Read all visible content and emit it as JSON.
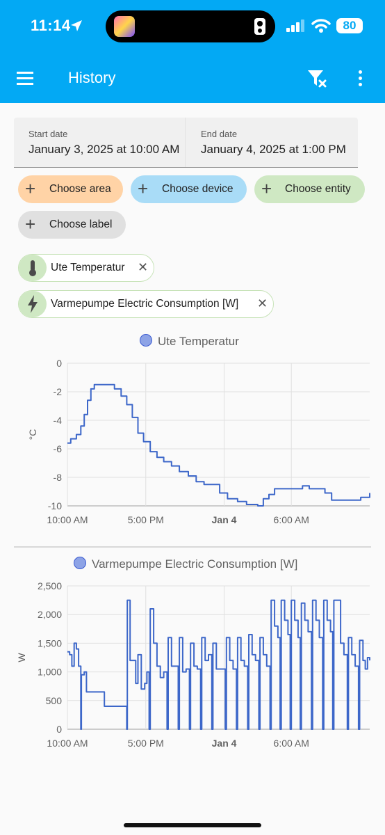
{
  "status": {
    "time": "11:14",
    "battery": "80"
  },
  "appbar": {
    "title": "History"
  },
  "dates": {
    "start_label": "Start date",
    "start_value": "January 3, 2025 at 10:00 AM",
    "end_label": "End date",
    "end_value": "January 4, 2025 at 1:00 PM"
  },
  "chips": {
    "area": "Choose area",
    "device": "Choose device",
    "entity": "Choose entity",
    "label": "Choose label"
  },
  "entities": [
    {
      "name": "Ute Temperatur",
      "icon": "thermometer-icon"
    },
    {
      "name": "Varmepumpe Electric Consumption [W]",
      "icon": "lightning-icon"
    }
  ],
  "colors": {
    "accent": "#03a9f4",
    "line": "#3d67c9",
    "area_chip": "#ffd3a6",
    "device_chip": "#a9dcf7",
    "entity_chip": "#cfe8c3",
    "label_chip": "#e0e0e0"
  },
  "chart_data": [
    {
      "type": "line",
      "title": "Ute Temperatur",
      "ylabel": "°C",
      "x_ticks": [
        "10:00 AM",
        "5:00 PM",
        "Jan 4",
        "6:00 AM"
      ],
      "y_ticks": [
        "0",
        "-2",
        "-4",
        "-6",
        "-8",
        "-10"
      ],
      "xlim_hours": [
        0,
        27
      ],
      "ylim": [
        -10,
        0
      ],
      "series": [
        {
          "name": "Ute Temperatur",
          "points": [
            [
              0,
              -5.6
            ],
            [
              0.3,
              -5.3
            ],
            [
              0.8,
              -5.0
            ],
            [
              1.2,
              -4.4
            ],
            [
              1.5,
              -3.6
            ],
            [
              1.8,
              -2.6
            ],
            [
              2.1,
              -1.8
            ],
            [
              2.4,
              -1.5
            ],
            [
              3.5,
              -1.5
            ],
            [
              4.2,
              -1.8
            ],
            [
              4.8,
              -2.3
            ],
            [
              5.3,
              -2.9
            ],
            [
              5.8,
              -3.8
            ],
            [
              6.3,
              -4.9
            ],
            [
              6.8,
              -5.5
            ],
            [
              7.4,
              -6.2
            ],
            [
              8,
              -6.6
            ],
            [
              8.6,
              -6.9
            ],
            [
              9.3,
              -7.2
            ],
            [
              10,
              -7.6
            ],
            [
              10.8,
              -7.9
            ],
            [
              11.5,
              -8.3
            ],
            [
              12.2,
              -8.5
            ],
            [
              13.2,
              -8.5
            ],
            [
              13.6,
              -9.1
            ],
            [
              14.3,
              -9.5
            ],
            [
              15.2,
              -9.7
            ],
            [
              16,
              -9.9
            ],
            [
              17,
              -10
            ],
            [
              17.5,
              -9.5
            ],
            [
              18,
              -9.2
            ],
            [
              18.5,
              -8.8
            ],
            [
              20,
              -8.8
            ],
            [
              21,
              -8.6
            ],
            [
              21.6,
              -8.8
            ],
            [
              23,
              -9.1
            ],
            [
              23.6,
              -9.6
            ],
            [
              25.5,
              -9.6
            ],
            [
              26.2,
              -9.4
            ],
            [
              27,
              -9.1
            ]
          ]
        }
      ]
    },
    {
      "type": "line",
      "title": "Varmepumpe Electric Consumption [W]",
      "ylabel": "W",
      "x_ticks": [
        "10:00 AM",
        "5:00 PM",
        "Jan 4",
        "6:00 AM"
      ],
      "y_ticks": [
        "2,500",
        "2,000",
        "1,500",
        "1,000",
        "500",
        "0"
      ],
      "xlim_hours": [
        0,
        27
      ],
      "ylim": [
        0,
        2500
      ],
      "series": [
        {
          "name": "Varmepumpe Electric Consumption [W]",
          "points": [
            [
              0,
              1350
            ],
            [
              0.2,
              1300
            ],
            [
              0.4,
              1100
            ],
            [
              0.6,
              1500
            ],
            [
              0.8,
              1400
            ],
            [
              1,
              1100
            ],
            [
              1.2,
              0
            ],
            [
              1.25,
              950
            ],
            [
              1.5,
              1000
            ],
            [
              1.7,
              650
            ],
            [
              3,
              650
            ],
            [
              3.3,
              400
            ],
            [
              5.2,
              400
            ],
            [
              5.3,
              0
            ],
            [
              5.35,
              2250
            ],
            [
              5.6,
              1200
            ],
            [
              5.9,
              1200
            ],
            [
              6.1,
              800
            ],
            [
              6.3,
              1300
            ],
            [
              6.6,
              700
            ],
            [
              6.9,
              800
            ],
            [
              7.1,
              1000
            ],
            [
              7.3,
              0
            ],
            [
              7.4,
              2100
            ],
            [
              7.7,
              1500
            ],
            [
              8,
              1100
            ],
            [
              8.3,
              900
            ],
            [
              8.6,
              1000
            ],
            [
              8.9,
              0
            ],
            [
              9,
              1600
            ],
            [
              9.3,
              1100
            ],
            [
              9.6,
              1100
            ],
            [
              9.9,
              0
            ],
            [
              10,
              1600
            ],
            [
              10.3,
              1000
            ],
            [
              10.6,
              1050
            ],
            [
              10.9,
              0
            ],
            [
              11,
              1500
            ],
            [
              11.3,
              1100
            ],
            [
              11.6,
              1050
            ],
            [
              11.9,
              0
            ],
            [
              12,
              1600
            ],
            [
              12.3,
              1200
            ],
            [
              12.6,
              1300
            ],
            [
              12.9,
              0
            ],
            [
              13,
              1500
            ],
            [
              13.3,
              1050
            ],
            [
              13.8,
              1050
            ],
            [
              14.1,
              0
            ],
            [
              14.2,
              1600
            ],
            [
              14.5,
              1200
            ],
            [
              14.8,
              1050
            ],
            [
              15.1,
              0
            ],
            [
              15.2,
              1600
            ],
            [
              15.5,
              1200
            ],
            [
              15.8,
              1100
            ],
            [
              16.1,
              0
            ],
            [
              16.2,
              1650
            ],
            [
              16.5,
              1300
            ],
            [
              16.8,
              1200
            ],
            [
              17.1,
              0
            ],
            [
              17.2,
              1600
            ],
            [
              17.5,
              1300
            ],
            [
              17.8,
              1100
            ],
            [
              18.1,
              0
            ],
            [
              18.2,
              2250
            ],
            [
              18.5,
              1800
            ],
            [
              18.8,
              1600
            ],
            [
              19,
              0
            ],
            [
              19.1,
              2250
            ],
            [
              19.4,
              1900
            ],
            [
              19.7,
              1650
            ],
            [
              19.9,
              0
            ],
            [
              20,
              2250
            ],
            [
              20.3,
              1900
            ],
            [
              20.6,
              1600
            ],
            [
              20.8,
              0
            ],
            [
              20.9,
              2200
            ],
            [
              21.2,
              1900
            ],
            [
              21.5,
              1700
            ],
            [
              21.8,
              0
            ],
            [
              21.9,
              2250
            ],
            [
              22.2,
              1900
            ],
            [
              22.5,
              1600
            ],
            [
              22.8,
              0
            ],
            [
              22.9,
              2250
            ],
            [
              23.2,
              1900
            ],
            [
              23.5,
              1700
            ],
            [
              23.7,
              0
            ],
            [
              23.8,
              2250
            ],
            [
              24.2,
              2250
            ],
            [
              24.4,
              1500
            ],
            [
              24.7,
              1300
            ],
            [
              25,
              0
            ],
            [
              25.1,
              1600
            ],
            [
              25.4,
              1300
            ],
            [
              25.7,
              1100
            ],
            [
              26,
              0
            ],
            [
              26.1,
              1550
            ],
            [
              26.4,
              1200
            ],
            [
              26.6,
              1050
            ],
            [
              26.8,
              1250
            ],
            [
              27,
              1200
            ]
          ]
        }
      ]
    }
  ]
}
